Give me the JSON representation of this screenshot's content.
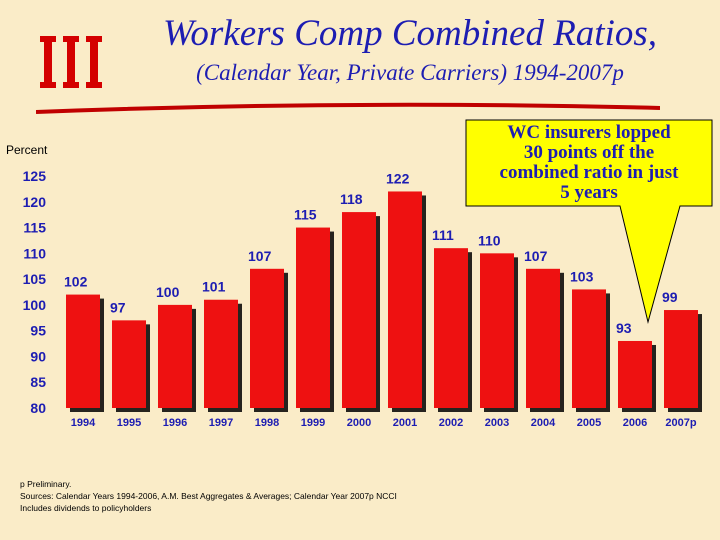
{
  "header": {
    "title": "Workers Comp Combined Ratios,",
    "subtitle": "(Calendar Year, Private Carriers) 1994-2007p",
    "logo_icon": "iii-logo-icon"
  },
  "callout": {
    "text": "WC insurers lopped 30 points off the combined ratio in just 5 years",
    "lines": [
      "WC insurers lopped",
      "30 points off the",
      "combined ratio in just",
      "5 years"
    ],
    "fill": "#ffff00"
  },
  "footnotes": [
    "p Preliminary.",
    "Sources: Calendar Years 1994-2006, A.M. Best Aggregates & Averages; Calendar Year  2007p NCCI",
    "Includes dividends to policyholders"
  ],
  "chart_data": {
    "type": "bar",
    "title": "Workers Comp Combined Ratios,",
    "subtitle": "(Calendar Year, Private Carriers) 1994-2007p",
    "ylabel": "Percent",
    "xlabel": "",
    "categories": [
      "1994",
      "1995",
      "1996",
      "1997",
      "1998",
      "1999",
      "2000",
      "2001",
      "2002",
      "2003",
      "2004",
      "2005",
      "2006",
      "2007p"
    ],
    "values": [
      102,
      97,
      100,
      101,
      107,
      115,
      118,
      122,
      111,
      110,
      107,
      103,
      93,
      99
    ],
    "ylim": [
      80,
      125
    ],
    "yticks": [
      80,
      85,
      90,
      95,
      100,
      105,
      110,
      115,
      120,
      125
    ],
    "grid": false,
    "legend": "none",
    "bar_color": "#ee1111"
  }
}
